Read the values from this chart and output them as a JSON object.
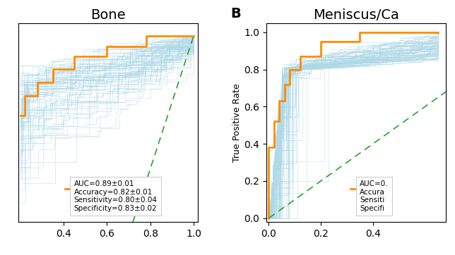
{
  "panel_A": {
    "title": "Bone",
    "xlim": [
      0.19,
      1.02
    ],
    "ylim": [
      0.72,
      1.02
    ],
    "xticks": [
      0.4,
      0.6,
      0.8,
      1.0
    ],
    "legend_lines": [
      "AUC=0.89±0.01",
      "Accuracy=0.82±0.01",
      "Sensitivity=0.80±0.04",
      "Specificity=0.83±0.02"
    ]
  },
  "panel_B": {
    "title": "Meniscus/Ca",
    "label": "B",
    "xlim": [
      -0.01,
      0.68
    ],
    "ylim": [
      -0.02,
      1.05
    ],
    "xticks": [
      0.0,
      0.2,
      0.4
    ],
    "yticks": [
      0.0,
      0.2,
      0.4,
      0.6,
      0.8,
      1.0
    ],
    "ylabel": "True Positive Rate",
    "legend_lines": [
      "AUC=0.",
      "Accura",
      "Sensiti",
      "Specifi"
    ]
  },
  "orange_color": "#FF8C00",
  "blue_color": "#ADD8E6",
  "green_color": "#2ca02c",
  "n_bootstrap": 80
}
